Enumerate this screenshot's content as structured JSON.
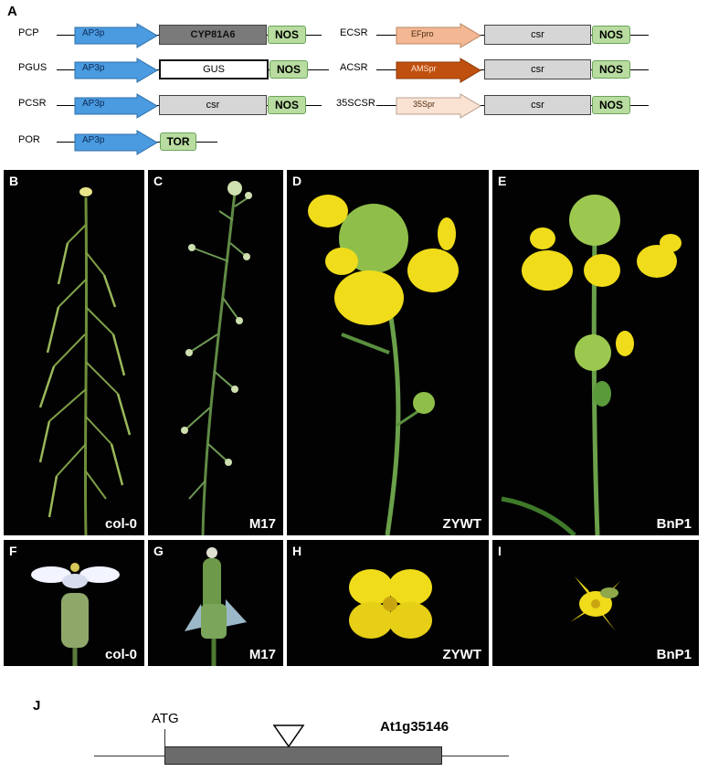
{
  "panel_a": {
    "letter": "A",
    "constructs": [
      {
        "name": "PCP",
        "promoter": "AP3p",
        "gene": "CYP81A6",
        "terminator": "NOS"
      },
      {
        "name": "PGUS",
        "promoter": "AP3p",
        "gene": "GUS",
        "terminator": "NOS"
      },
      {
        "name": "PCSR",
        "promoter": "AP3p",
        "gene": "csr",
        "terminator": "NOS"
      },
      {
        "name": "POR",
        "promoter": "AP3p",
        "gene": "TOR"
      },
      {
        "name": "ECSR",
        "promoter": "EFpro",
        "gene": "csr",
        "terminator": "NOS"
      },
      {
        "name": "ACSR",
        "promoter": "AMSpr",
        "gene": "csr",
        "terminator": "NOS"
      },
      {
        "name": "35SCSR",
        "promoter": "35Spr",
        "gene": "csr",
        "terminator": "NOS"
      }
    ],
    "colors": {
      "ap3p": "#4a9be0",
      "efpro": "#f3b793",
      "amspr": "#c0500f",
      "s35pr": "#fbe3d3",
      "cyp": "#7a7a7a",
      "csr": "#d6d6d6",
      "nos": "#b9dca0"
    }
  },
  "plant_panels": [
    {
      "letter": "B",
      "caption": "col-0"
    },
    {
      "letter": "C",
      "caption": "M17"
    },
    {
      "letter": "D",
      "caption": "ZYWT"
    },
    {
      "letter": "E",
      "caption": "BnP1"
    }
  ],
  "flower_panels": [
    {
      "letter": "F",
      "caption": "col-0"
    },
    {
      "letter": "G",
      "caption": "M17"
    },
    {
      "letter": "H",
      "caption": "ZYWT"
    },
    {
      "letter": "I",
      "caption": "BnP1"
    }
  ],
  "panel_j": {
    "letter": "J",
    "start_label": "ATG",
    "gene_id": "At1g35146"
  }
}
